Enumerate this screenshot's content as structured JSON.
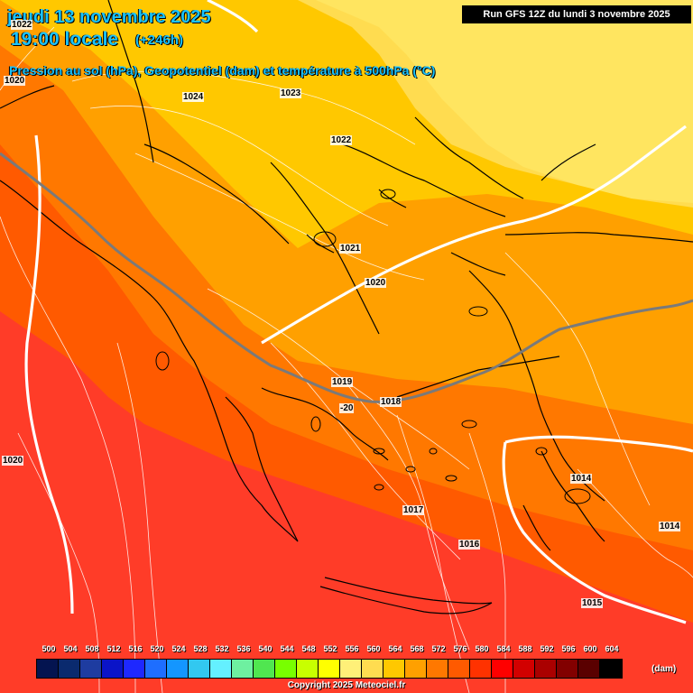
{
  "header": {
    "date": "jeudi 13 novembre 2025",
    "time": "19:00 locale",
    "lead": "(+246h)",
    "subtitle": "Pression au sol (hPa), Geopotentiel (dam) et température à 500hPa (°C)",
    "run": "Run GFS 12Z du lundi 3 novembre 2025"
  },
  "isobar_labels": [
    "1022",
    "1020",
    "1024",
    "1023",
    "1022",
    "1021",
    "1020",
    "1019",
    "1018",
    "1020",
    "1014",
    "1017",
    "1016",
    "1015",
    "1014",
    "1020"
  ],
  "temperature_label": "-20",
  "legend": {
    "levels": [
      "500",
      "504",
      "508",
      "512",
      "516",
      "520",
      "524",
      "528",
      "532",
      "536",
      "540",
      "544",
      "548",
      "552",
      "556",
      "560",
      "564",
      "568",
      "572",
      "576",
      "580",
      "584",
      "588",
      "592",
      "596",
      "600",
      "604"
    ],
    "colors": [
      "#041450",
      "#0a2a6e",
      "#1e3ca0",
      "#0a14c8",
      "#1e28ff",
      "#1e6eff",
      "#1496ff",
      "#32c8f0",
      "#64f0ff",
      "#6ef0a0",
      "#50e650",
      "#78ff00",
      "#c8ff00",
      "#ffff00",
      "#fff078",
      "#ffdc50",
      "#ffc800",
      "#ffa000",
      "#ff7800",
      "#ff5a00",
      "#ff3200",
      "#ff0000",
      "#d20000",
      "#aa0000",
      "#820000",
      "#5a0000",
      "#000000"
    ],
    "unit": "(dam)"
  },
  "footer": {
    "copyright": "Copyright 2025 Meteociel.fr"
  }
}
